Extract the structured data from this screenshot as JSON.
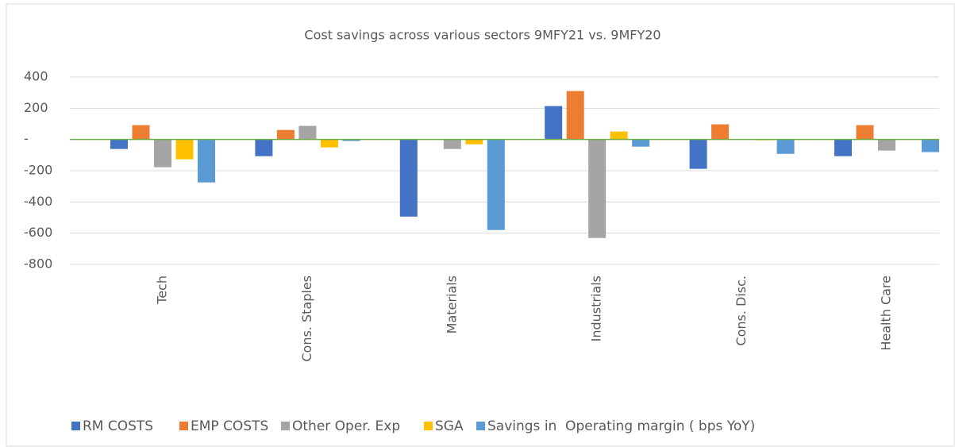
{
  "chart_data": {
    "type": "bar",
    "title": "Cost savings across various sectors 9MFY21 vs. 9MFY20",
    "categories": [
      "Tech",
      "Cons. Staples",
      "Materials",
      "Industrials",
      "Cons. Disc.",
      "Health Care"
    ],
    "series": [
      {
        "name": "RM COSTS",
        "color": "#4472c4",
        "values": [
          -61,
          -107,
          -494,
          214,
          -188,
          -107
        ]
      },
      {
        "name": "EMP COSTS",
        "color": "#ed7d31",
        "values": [
          92,
          61,
          0,
          310,
          97,
          92
        ]
      },
      {
        "name": "Other Oper. Exp",
        "color": "#a5a5a5",
        "values": [
          -178,
          87,
          -61,
          -631,
          0,
          -71
        ]
      },
      {
        "name": "SGA",
        "color": "#ffc000",
        "values": [
          -127,
          -51,
          -31,
          51,
          -5,
          0
        ]
      },
      {
        "name": "Savings in  Operating margin ( bps YoY)",
        "color": "#5b9bd5",
        "values": [
          -275,
          -10,
          -580,
          -46,
          -92,
          -81
        ]
      }
    ],
    "ylim": [
      -800,
      400
    ],
    "yticks": [
      -800,
      -600,
      -400,
      -200,
      {
        "value": 0,
        "label": "-"
      },
      200,
      400
    ],
    "grid": true,
    "legend": "bottom"
  }
}
